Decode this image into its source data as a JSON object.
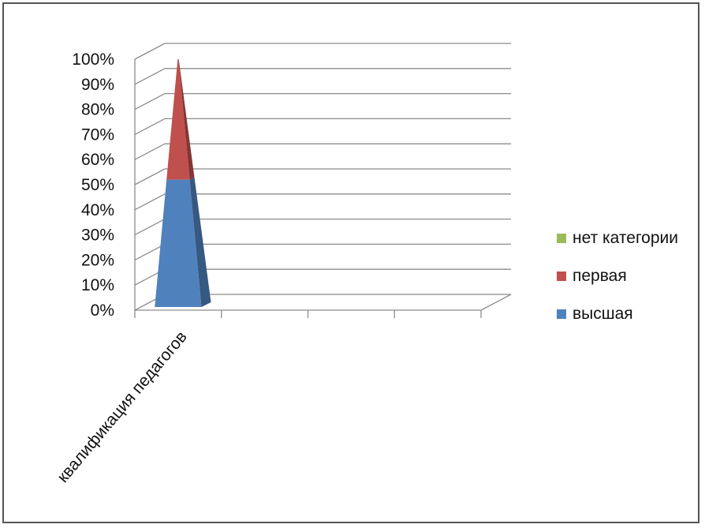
{
  "chart_data": {
    "type": "bar",
    "variant": "3d-stacked-percent-pyramid",
    "categories": [
      "квалификация педагогов",
      "",
      "",
      ""
    ],
    "series": [
      {
        "name": "высшая",
        "color": "#4F81BD",
        "values": [
          52,
          0,
          0,
          0
        ]
      },
      {
        "name": "первая",
        "color": "#C0504D",
        "values": [
          48,
          0,
          0,
          0
        ]
      },
      {
        "name": "нет категории",
        "color": "#9BBB59",
        "values": [
          0,
          0,
          0,
          0
        ]
      }
    ],
    "y_ticks": [
      "0%",
      "10%",
      "20%",
      "30%",
      "40%",
      "50%",
      "60%",
      "70%",
      "80%",
      "90%",
      "100%"
    ],
    "ylim": [
      0,
      100
    ],
    "grid": true,
    "legend_position": "right"
  }
}
